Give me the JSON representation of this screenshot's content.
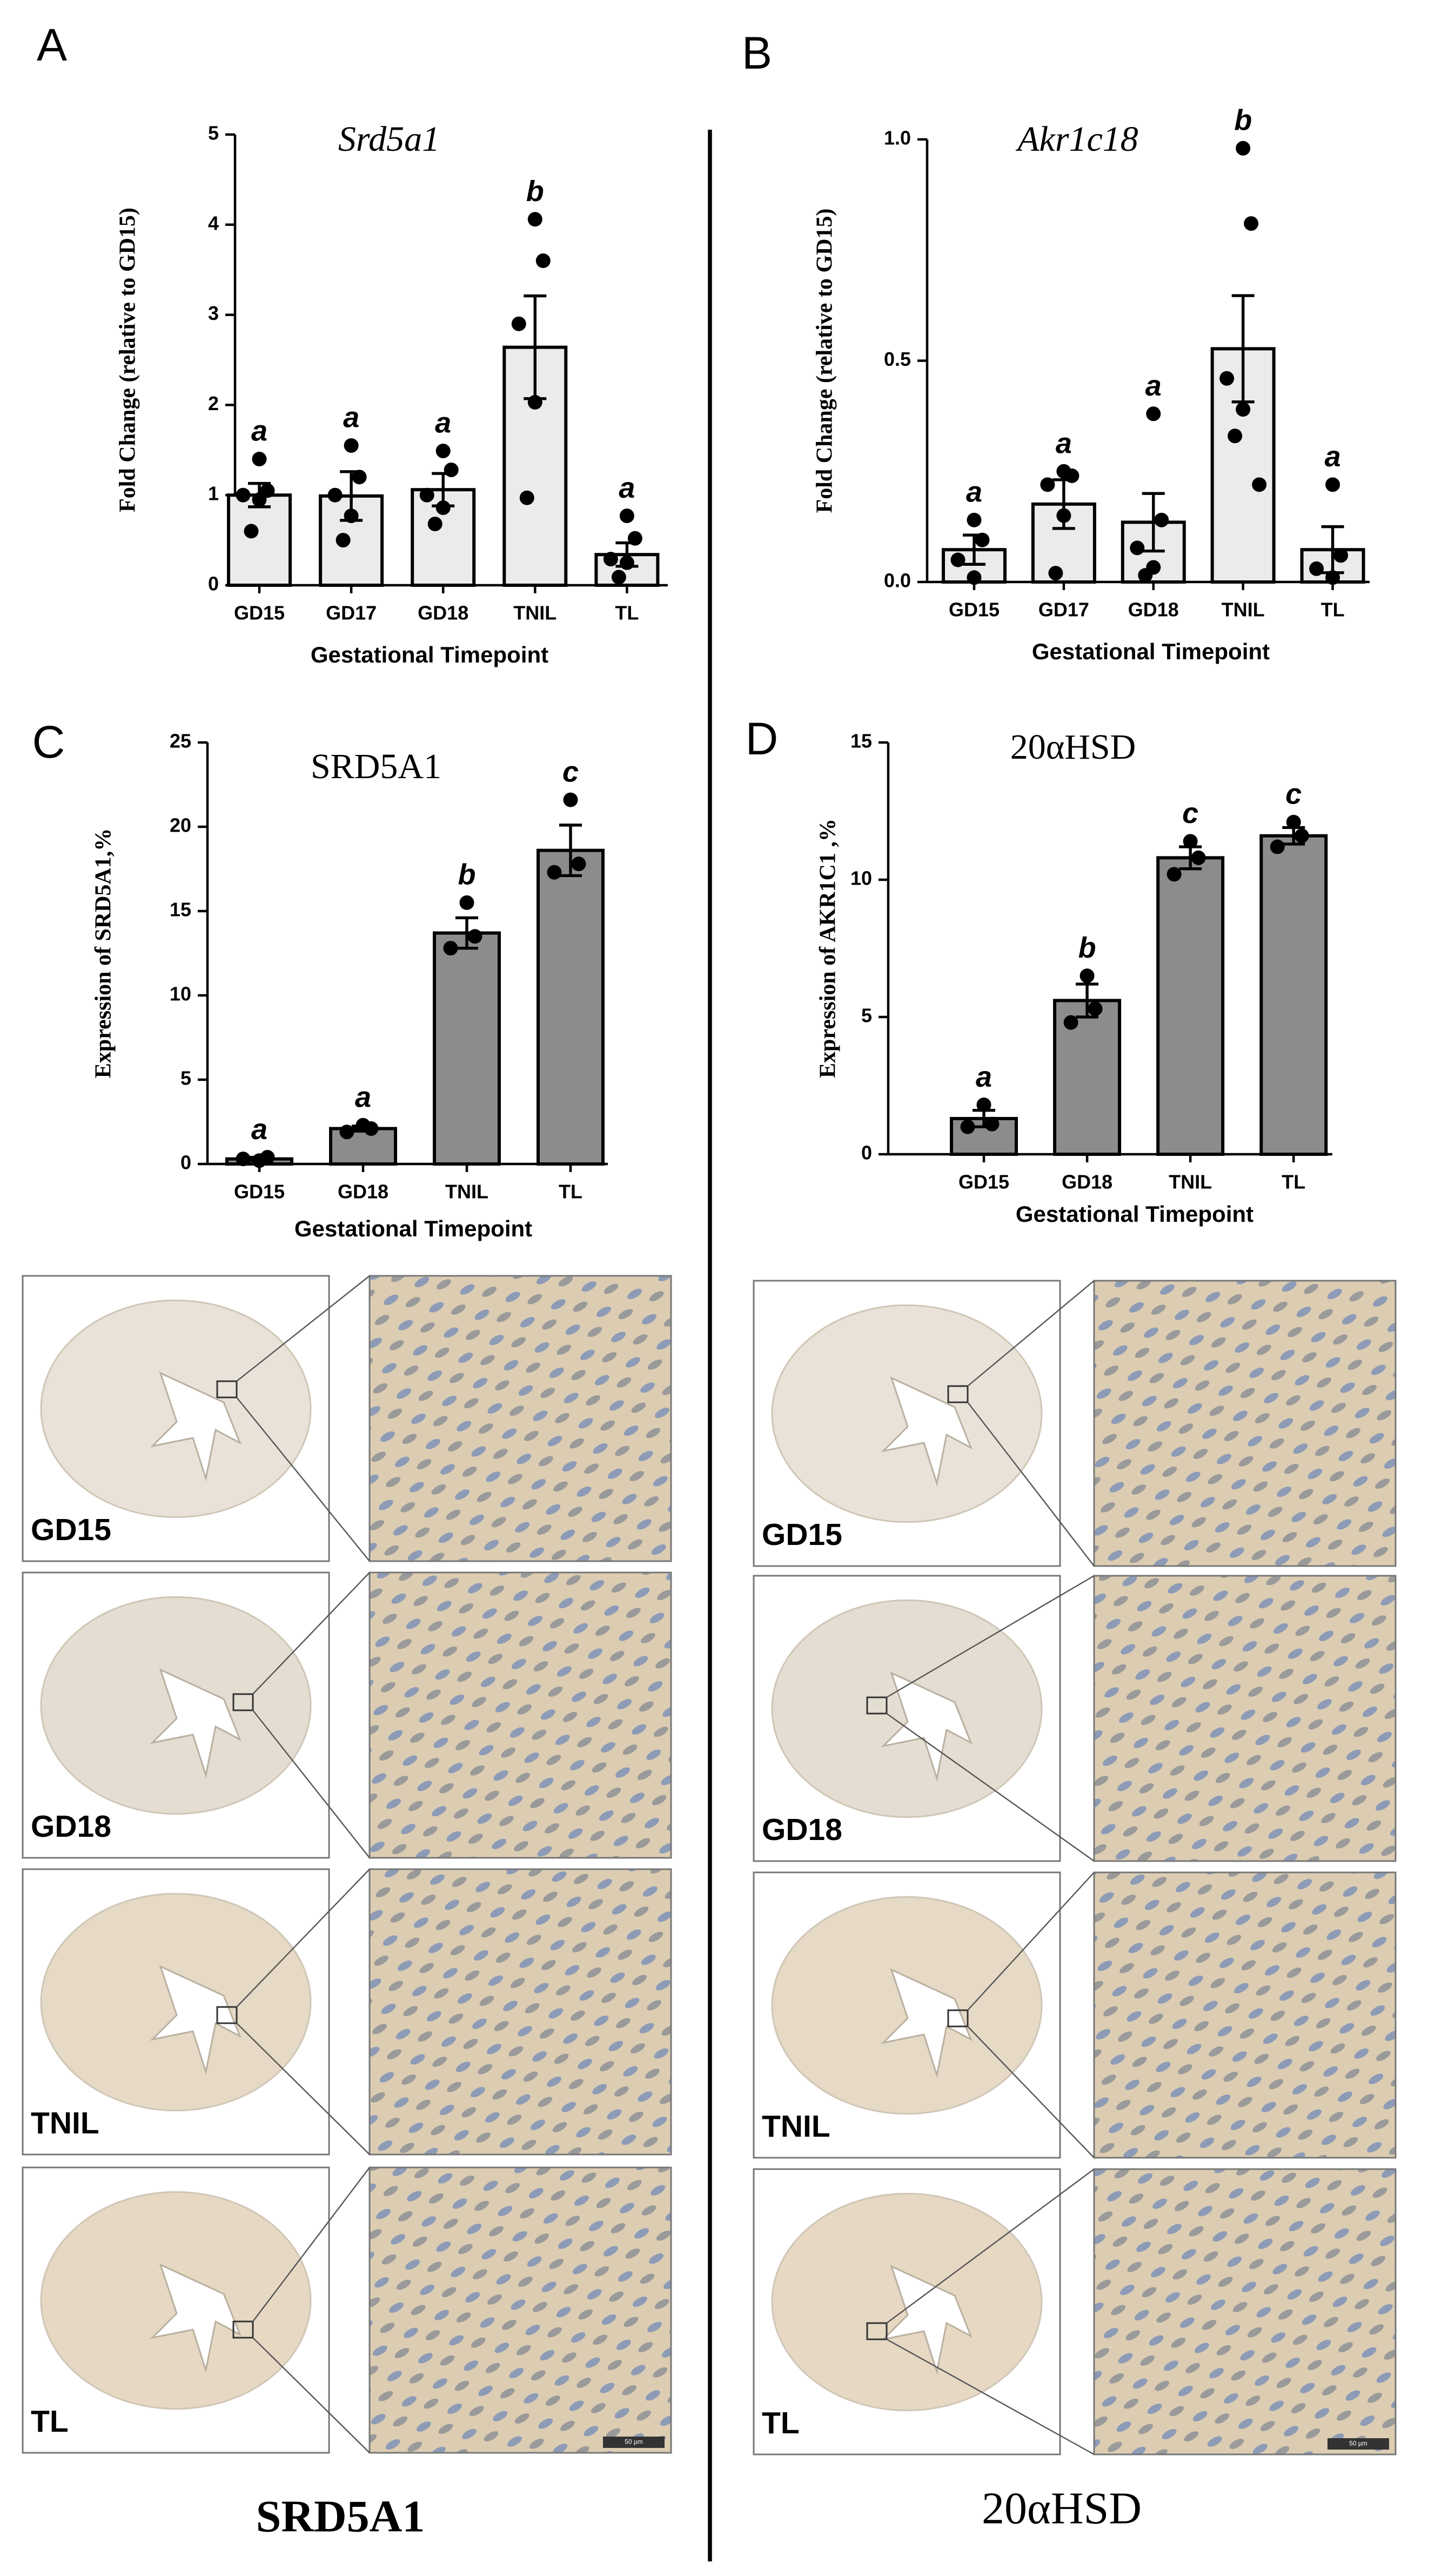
{
  "panel_labels": [
    "A",
    "B",
    "C",
    "D"
  ],
  "chart_data": [
    {
      "type": "bar",
      "title": "Srd5a1",
      "y_label": "Fold Change (relative to GD15)",
      "x_label": "Gestational Timepoint",
      "color": "#ebebeb",
      "categories": [
        "GD15",
        "GD17",
        "GD18",
        "TNIL",
        "TL"
      ],
      "values": [
        1.0,
        0.99,
        1.06,
        2.64,
        0.34
      ],
      "errors": [
        0.13,
        0.27,
        0.18,
        0.57,
        0.13
      ],
      "points": [
        [
          1.4,
          1.05,
          1.0,
          0.95,
          0.6
        ],
        [
          1.55,
          1.2,
          1.0,
          0.77,
          0.5
        ],
        [
          1.49,
          1.28,
          1.0,
          0.86,
          0.68
        ],
        [
          4.06,
          3.6,
          2.9,
          2.03,
          0.97
        ],
        [
          0.77,
          0.52,
          0.29,
          0.25,
          0.09
        ]
      ],
      "letters": [
        "a",
        "a",
        "a",
        "b",
        "a"
      ],
      "ylim": [
        0,
        5
      ],
      "yticks": [
        0,
        1,
        2,
        3,
        4,
        5
      ]
    },
    {
      "type": "bar",
      "title": "Akr1c18",
      "y_label": "Fold Change (relative to GD15)",
      "x_label": "Gestational Timepoint",
      "color": "#ebebeb",
      "categories": [
        "GD15",
        "GD17",
        "GD18",
        "TNIL",
        "TL"
      ],
      "values": [
        0.073,
        0.176,
        0.135,
        0.527,
        0.073
      ],
      "errors": [
        0.033,
        0.055,
        0.065,
        0.12,
        0.052
      ],
      "points": [
        [
          0.14,
          0.095,
          0.05,
          0.01
        ],
        [
          0.25,
          0.24,
          0.22,
          0.15,
          0.02
        ],
        [
          0.38,
          0.14,
          0.077,
          0.033,
          0.015
        ],
        [
          0.98,
          0.81,
          0.46,
          0.39,
          0.33,
          0.22
        ],
        [
          0.22,
          0.06,
          0.03,
          0.01
        ]
      ],
      "letters": [
        "a",
        "a",
        "a",
        "b",
        "a"
      ],
      "ylim": [
        0,
        1
      ],
      "yticks": [
        {
          "value": 0,
          "label": "0.0"
        },
        0.5,
        {
          "value": 1,
          "label": "1.0"
        }
      ]
    },
    {
      "type": "bar",
      "title": "SRD5A1",
      "y_label": "Expression of SRD5A1,%",
      "x_label": "Gestational Timepoint",
      "color": "#8c8c8c",
      "categories": [
        "GD15",
        "GD18",
        "TNIL",
        "TL"
      ],
      "values": [
        0.3,
        2.1,
        13.7,
        18.6
      ],
      "errors": [
        0.1,
        0.15,
        0.9,
        1.5
      ],
      "points": [
        [
          0.2,
          0.4,
          0.3
        ],
        [
          2.3,
          2.1,
          1.9
        ],
        [
          15.5,
          13.5,
          12.8
        ],
        [
          21.6,
          17.8,
          17.3
        ]
      ],
      "letters": [
        "a",
        "a",
        "b",
        "c"
      ],
      "ylim": [
        0,
        25
      ],
      "yticks": [
        0,
        5,
        10,
        15,
        20,
        25
      ]
    },
    {
      "type": "bar",
      "title": "20αHSD",
      "y_label": "Expression of AKR1C1 ,%",
      "x_label": "Gestational Timepoint",
      "color": "#8c8c8c",
      "categories": [
        "GD15",
        "GD18",
        "TNIL",
        "TL"
      ],
      "values": [
        1.3,
        5.6,
        10.8,
        11.6
      ],
      "errors": [
        0.3,
        0.6,
        0.4,
        0.3
      ],
      "points": [
        [
          1.8,
          1.1,
          1.0
        ],
        [
          6.5,
          5.3,
          4.8
        ],
        [
          11.4,
          10.8,
          10.2
        ],
        [
          12.1,
          11.6,
          11.2
        ]
      ],
      "letters": [
        "a",
        "b",
        "c",
        "c"
      ],
      "ylim": [
        0,
        15
      ],
      "yticks": [
        0,
        5,
        10,
        15
      ]
    }
  ],
  "micrographs": {
    "rows": [
      "GD15",
      "GD18",
      "TNIL",
      "TL"
    ],
    "captions": [
      "SRD5A1",
      "20αHSD"
    ],
    "scale_bar": "50 µm"
  }
}
